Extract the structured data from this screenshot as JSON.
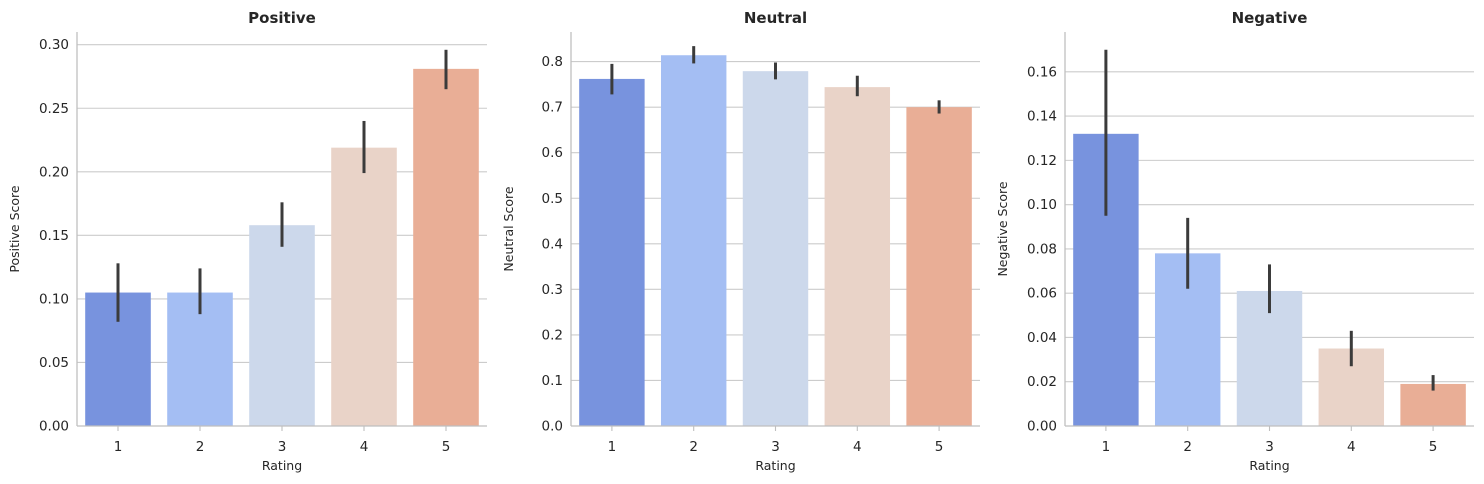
{
  "chart_data": [
    {
      "type": "bar",
      "title": "Positive",
      "xlabel": "Rating",
      "ylabel": "Positive Score",
      "categories": [
        "1",
        "2",
        "3",
        "4",
        "5"
      ],
      "values": [
        0.105,
        0.105,
        0.158,
        0.219,
        0.281
      ],
      "error_low": [
        0.082,
        0.088,
        0.141,
        0.199,
        0.265
      ],
      "error_high": [
        0.128,
        0.124,
        0.176,
        0.24,
        0.296
      ],
      "ylim": [
        0,
        0.31
      ],
      "yticks": [
        0.0,
        0.05,
        0.1,
        0.15,
        0.2,
        0.25,
        0.3
      ],
      "ytick_labels": [
        "0.00",
        "0.05",
        "0.10",
        "0.15",
        "0.20",
        "0.25",
        "0.30"
      ],
      "colors": [
        "#7893de",
        "#a4bef3",
        "#ccd8eb",
        "#e9d3c8",
        "#e9ae96"
      ],
      "grid": "horizontal"
    },
    {
      "type": "bar",
      "title": "Neutral",
      "xlabel": "Rating",
      "ylabel": "Neutral Score",
      "categories": [
        "1",
        "2",
        "3",
        "4",
        "5"
      ],
      "values": [
        0.762,
        0.814,
        0.779,
        0.744,
        0.7
      ],
      "error_low": [
        0.728,
        0.796,
        0.761,
        0.724,
        0.686
      ],
      "error_high": [
        0.795,
        0.834,
        0.798,
        0.769,
        0.715
      ],
      "ylim": [
        0,
        0.865
      ],
      "yticks": [
        0.0,
        0.1,
        0.2,
        0.3,
        0.4,
        0.5,
        0.6,
        0.7,
        0.8
      ],
      "ytick_labels": [
        "0.0",
        "0.1",
        "0.2",
        "0.3",
        "0.4",
        "0.5",
        "0.6",
        "0.7",
        "0.8"
      ],
      "colors": [
        "#7893de",
        "#a4bef3",
        "#ccd8eb",
        "#e9d3c8",
        "#e9ae96"
      ],
      "grid": "horizontal"
    },
    {
      "type": "bar",
      "title": "Negative",
      "xlabel": "Rating",
      "ylabel": "Negative Score",
      "categories": [
        "1",
        "2",
        "3",
        "4",
        "5"
      ],
      "values": [
        0.132,
        0.078,
        0.061,
        0.035,
        0.019
      ],
      "error_low": [
        0.095,
        0.062,
        0.051,
        0.027,
        0.016
      ],
      "error_high": [
        0.17,
        0.094,
        0.073,
        0.043,
        0.023
      ],
      "ylim": [
        0,
        0.178
      ],
      "yticks": [
        0.0,
        0.02,
        0.04,
        0.06,
        0.08,
        0.1,
        0.12,
        0.14,
        0.16
      ],
      "ytick_labels": [
        "0.00",
        "0.02",
        "0.04",
        "0.06",
        "0.08",
        "0.10",
        "0.12",
        "0.14",
        "0.16"
      ],
      "colors": [
        "#7893de",
        "#a4bef3",
        "#ccd8eb",
        "#e9d3c8",
        "#e9ae96"
      ],
      "grid": "horizontal"
    }
  ]
}
